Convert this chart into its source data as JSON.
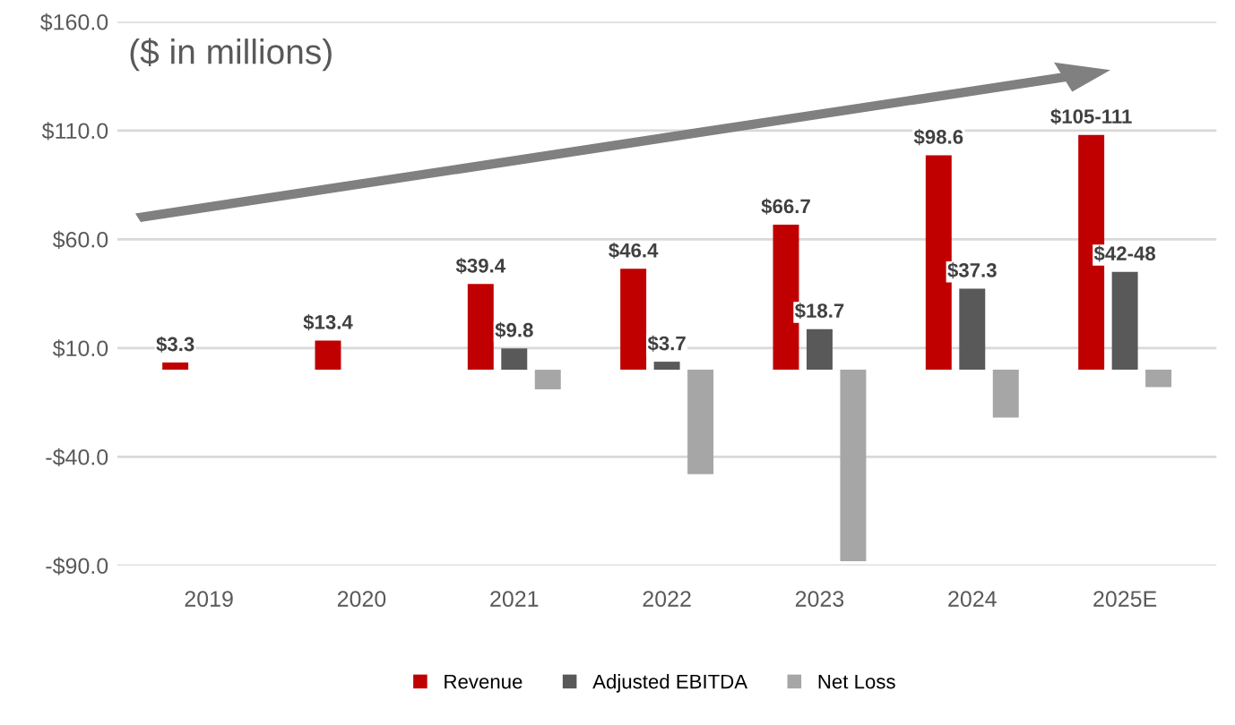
{
  "chart_data": {
    "type": "bar",
    "categories": [
      "2019",
      "2020",
      "2021",
      "2022",
      "2023",
      "2024",
      "2025E"
    ],
    "series": [
      {
        "name": "Revenue",
        "color": "#c00000",
        "values": [
          3.3,
          13.4,
          39.4,
          46.4,
          66.7,
          98.6,
          108
        ],
        "value_labels": [
          "$3.3",
          "$13.4",
          "$39.4",
          "$46.4",
          "$66.7",
          "$98.6",
          "$105-111"
        ]
      },
      {
        "name": "Adjusted EBITDA",
        "color": "#595959",
        "values": [
          null,
          null,
          9.8,
          3.7,
          18.7,
          37.3,
          45
        ],
        "value_labels": [
          null,
          null,
          "$9.8",
          "$3.7",
          "$18.7",
          "$37.3",
          "$42-48"
        ]
      },
      {
        "name": "Net Loss",
        "color": "#a6a6a6",
        "values": [
          null,
          null,
          -9,
          -48,
          -88,
          -22,
          -8
        ]
      }
    ],
    "ylim": [
      -90,
      160
    ],
    "yticks": [
      {
        "value": -90,
        "label": "-$90.0"
      },
      {
        "value": -40,
        "label": "-$40.0"
      },
      {
        "value": 10,
        "label": "$10.0"
      },
      {
        "value": 60,
        "label": "$60.0"
      },
      {
        "value": 110,
        "label": "$110.0"
      },
      {
        "value": 160,
        "label": "$160.0"
      }
    ],
    "annotations": [
      "($ in millions)"
    ],
    "grid": "y",
    "legend": "bottom"
  }
}
